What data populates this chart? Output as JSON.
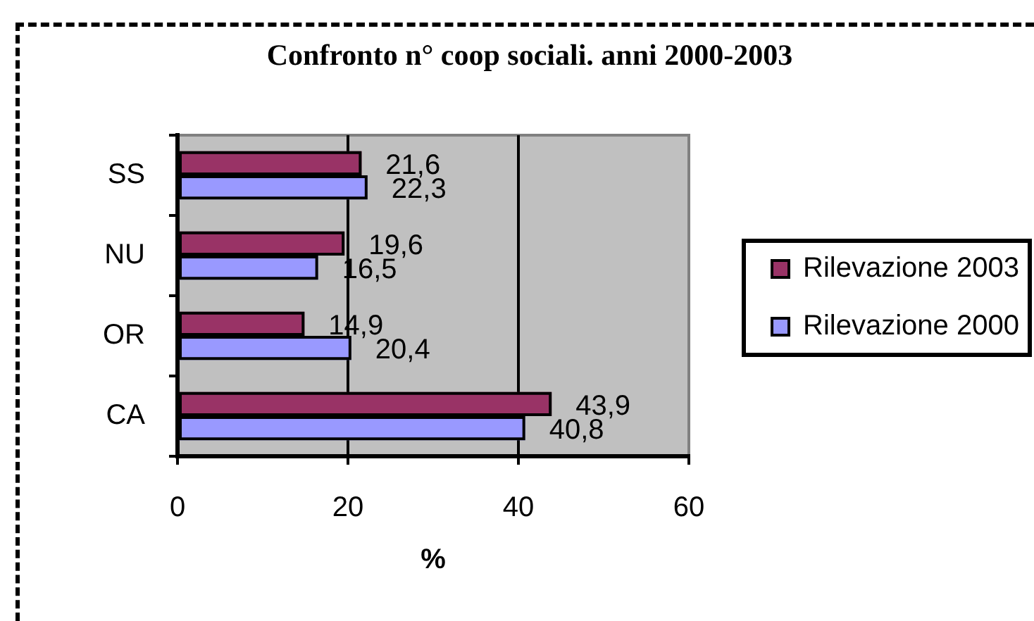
{
  "chart_data": {
    "type": "bar",
    "orientation": "horizontal",
    "title": "Confronto n° coop sociali. anni 2000-2003",
    "xlabel": "%",
    "categories": [
      "SS",
      "NU",
      "OR",
      "CA"
    ],
    "series": [
      {
        "name": "Rilevazione 2003",
        "color": "#993366",
        "values": [
          21.6,
          19.6,
          14.9,
          43.9
        ],
        "value_labels": [
          "21,6",
          "19,6",
          "14,9",
          "43,9"
        ]
      },
      {
        "name": "Rilevazione 2000",
        "color": "#9999ff",
        "values": [
          22.3,
          16.5,
          20.4,
          40.8
        ],
        "value_labels": [
          "22,3",
          "16,5",
          "20,4",
          "40,8"
        ]
      }
    ],
    "xlim": [
      0,
      60
    ],
    "xticks": [
      0,
      20,
      40,
      60
    ],
    "grid": "x",
    "legend": "right"
  }
}
